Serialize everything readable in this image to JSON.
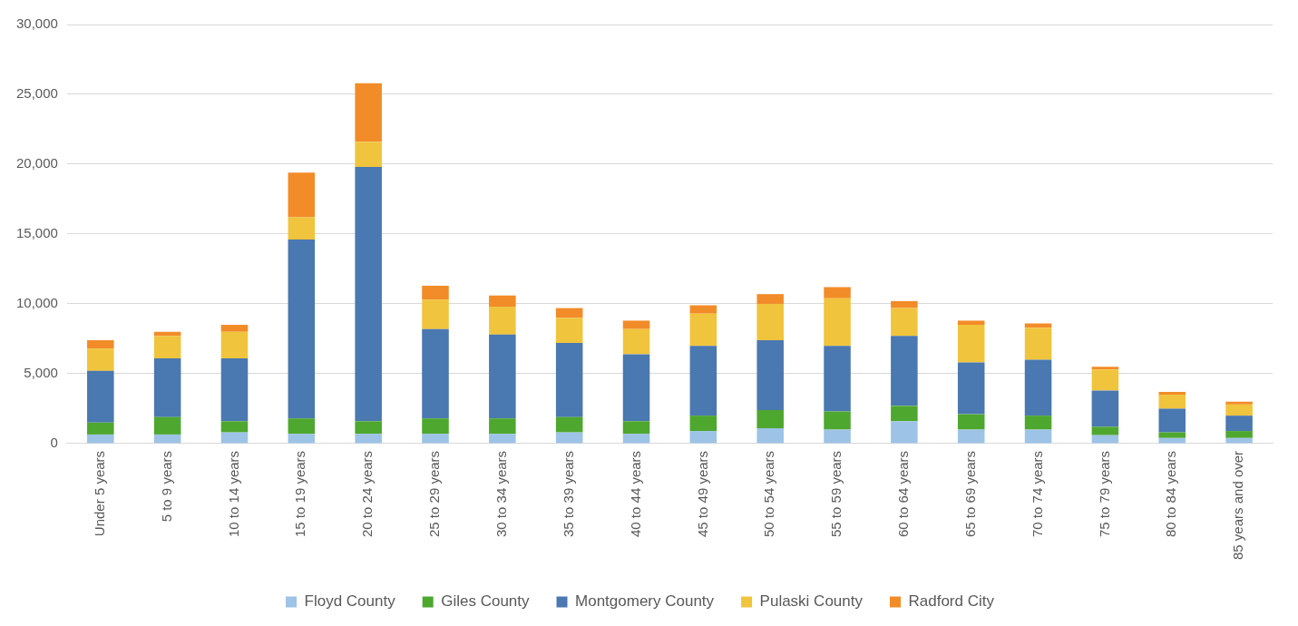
{
  "chart_data": {
    "type": "bar",
    "stacked": true,
    "categories": [
      "Under 5 years",
      "5 to 9 years",
      "10 to 14 years",
      "15 to 19 years",
      "20 to 24 years",
      "25 to 29 years",
      "30 to 34 years",
      "35 to 39 years",
      "40 to 44 years",
      "45 to 49 years",
      "50 to 54 years",
      "55 to 59 years",
      "60 to 64 years",
      "65 to 69 years",
      "70 to 74 years",
      "75 to 79 years",
      "80 to 84 years",
      "85 years and over"
    ],
    "series": [
      {
        "name": "Floyd County",
        "color": "#9dc3e6",
        "values": [
          650,
          650,
          800,
          700,
          700,
          700,
          700,
          800,
          700,
          900,
          1100,
          1000,
          1600,
          1000,
          1000,
          600,
          400,
          400
        ]
      },
      {
        "name": "Giles County",
        "color": "#4ea72e",
        "values": [
          850,
          1250,
          800,
          1100,
          900,
          1100,
          1100,
          1100,
          900,
          1100,
          1300,
          1300,
          1100,
          1100,
          1000,
          600,
          400,
          500
        ]
      },
      {
        "name": "Montgomery County",
        "color": "#4a78b0",
        "values": [
          3700,
          4200,
          4500,
          12800,
          18200,
          6400,
          6000,
          5300,
          4800,
          5000,
          5000,
          4700,
          5000,
          3700,
          4000,
          2600,
          1700,
          1100
        ]
      },
      {
        "name": "Pulaski County",
        "color": "#f0c43c",
        "values": [
          1600,
          1600,
          1900,
          1600,
          1800,
          2100,
          2000,
          1800,
          1800,
          2300,
          2600,
          3400,
          2000,
          2700,
          2300,
          1500,
          1000,
          800
        ]
      },
      {
        "name": "Radford City",
        "color": "#f28c28",
        "values": [
          600,
          300,
          500,
          3200,
          4200,
          1000,
          800,
          700,
          600,
          600,
          700,
          800,
          500,
          300,
          300,
          200,
          200,
          200
        ]
      }
    ],
    "ylim": [
      0,
      30000
    ],
    "yticks": [
      {
        "value": 0,
        "label": "0"
      },
      {
        "value": 5000,
        "label": "5,000"
      },
      {
        "value": 10000,
        "label": "10,000"
      },
      {
        "value": 15000,
        "label": "15,000"
      },
      {
        "value": 20000,
        "label": "20,000"
      },
      {
        "value": 25000,
        "label": "25,000"
      },
      {
        "value": 30000,
        "label": "30,000"
      }
    ],
    "grid": "y",
    "legend": "bottom"
  }
}
